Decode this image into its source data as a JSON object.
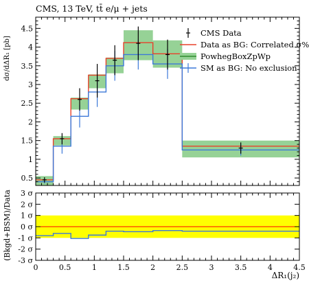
{
  "chart_data": [
    {
      "type": "line",
      "title": "CMS, 13 TeV, tt̄ e/μ + jets",
      "xlabel": "ΔR₁(j₂)",
      "ylabel": "dσ/dΔR₁ [pb]",
      "xlim": [
        0,
        4.5
      ],
      "ylim": [
        0.3,
        4.8
      ],
      "xticks": [
        0,
        0.5,
        1,
        1.5,
        2,
        2.5,
        3,
        3.5,
        4,
        4.5
      ],
      "xtick_labels": [
        "0",
        "0.5",
        "1",
        "1.5",
        "2",
        "2.5",
        "3",
        "3.5",
        "4",
        "4.5"
      ],
      "yticks": [
        0.5,
        1,
        1.5,
        2,
        2.5,
        3,
        3.5,
        4,
        4.5
      ],
      "ytick_labels": [
        "0.5",
        "1",
        "1.5",
        "2",
        "2.5",
        "3",
        "3.5",
        "4",
        "4.5"
      ],
      "bin_edges": [
        0,
        0.3,
        0.6,
        0.9,
        1.2,
        1.5,
        2.0,
        2.5,
        4.5
      ],
      "legend_position": "top-right",
      "series": [
        {
          "name": "CMS Data",
          "kind": "points",
          "color": "#000000",
          "x": [
            0.15,
            0.45,
            0.75,
            1.05,
            1.35,
            1.75,
            2.25,
            3.5
          ],
          "y": [
            0.45,
            1.55,
            2.6,
            3.1,
            3.65,
            4.1,
            3.8,
            1.3
          ],
          "yerr": [
            0.07,
            0.15,
            0.3,
            0.45,
            0.4,
            0.45,
            0.4,
            0.15
          ]
        },
        {
          "name": "Data as BG: Correlated σ%",
          "kind": "step",
          "color": "#e8402a",
          "values": [
            0.45,
            1.55,
            2.62,
            3.25,
            3.7,
            4.12,
            3.82,
            1.35
          ]
        },
        {
          "name": "PowhegBoxZpWp",
          "kind": "band",
          "color": "#96d296",
          "lower": [
            0.3,
            1.37,
            2.33,
            2.9,
            3.3,
            3.65,
            3.45,
            1.05
          ],
          "upper": [
            0.55,
            1.62,
            2.65,
            3.27,
            3.72,
            4.45,
            4.18,
            1.5
          ]
        },
        {
          "name": "SM as BG: No exclusion",
          "kind": "step",
          "color": "#3c78d8",
          "values": [
            0.4,
            1.35,
            2.15,
            2.8,
            3.5,
            3.8,
            3.55,
            1.25
          ],
          "yerr": [
            0.05,
            0.2,
            0.3,
            0.4,
            0.4,
            0.4,
            0.4,
            0.15
          ]
        }
      ]
    },
    {
      "type": "line",
      "title": "",
      "xlabel": "ΔR₁(j₂)",
      "ylabel": "(Bkgd+BSM)/Data",
      "xlim": [
        0,
        4.5
      ],
      "ylim": [
        -3,
        3
      ],
      "yticks": [
        -3,
        -2,
        -1,
        0,
        1,
        2,
        3
      ],
      "ytick_labels": [
        "-3 σ",
        "-2 σ",
        "-1 σ",
        "0 σ",
        "1 σ",
        "2 σ",
        "3 σ"
      ],
      "band": {
        "lower": -1,
        "upper": 1,
        "color": "#ffff00"
      },
      "reference_line": {
        "y": 0,
        "color": "#ff0000"
      },
      "series": [
        {
          "name": "SM as BG: No exclusion",
          "kind": "step",
          "color": "#3c78d8",
          "values": [
            -0.8,
            -0.6,
            -1.05,
            -0.75,
            -0.4,
            -0.45,
            -0.35,
            -0.4
          ]
        }
      ]
    }
  ]
}
